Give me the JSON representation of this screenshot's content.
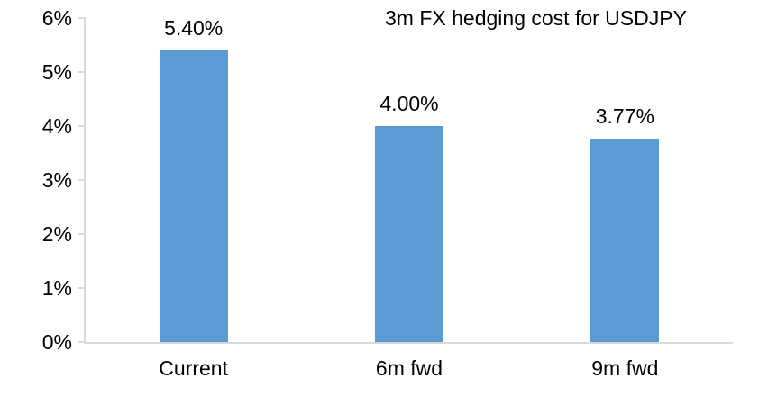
{
  "chart_data": {
    "type": "bar",
    "title": "3m FX hedging cost for USDJPY",
    "categories": [
      "Current",
      "6m fwd",
      "9m fwd"
    ],
    "values": [
      5.4,
      4.0,
      3.77
    ],
    "data_labels": [
      "5.40%",
      "4.00%",
      "3.77%"
    ],
    "xlabel": "",
    "ylabel": "",
    "ylim": [
      0,
      6
    ],
    "yticks": [
      "0%",
      "1%",
      "2%",
      "3%",
      "4%",
      "5%",
      "6%"
    ],
    "grid": false,
    "legend": false,
    "bar_color": "#5B9BD5",
    "axis_color": "#D9D9D9",
    "text_color": "#000000",
    "background_color": "#FFFFFF"
  }
}
